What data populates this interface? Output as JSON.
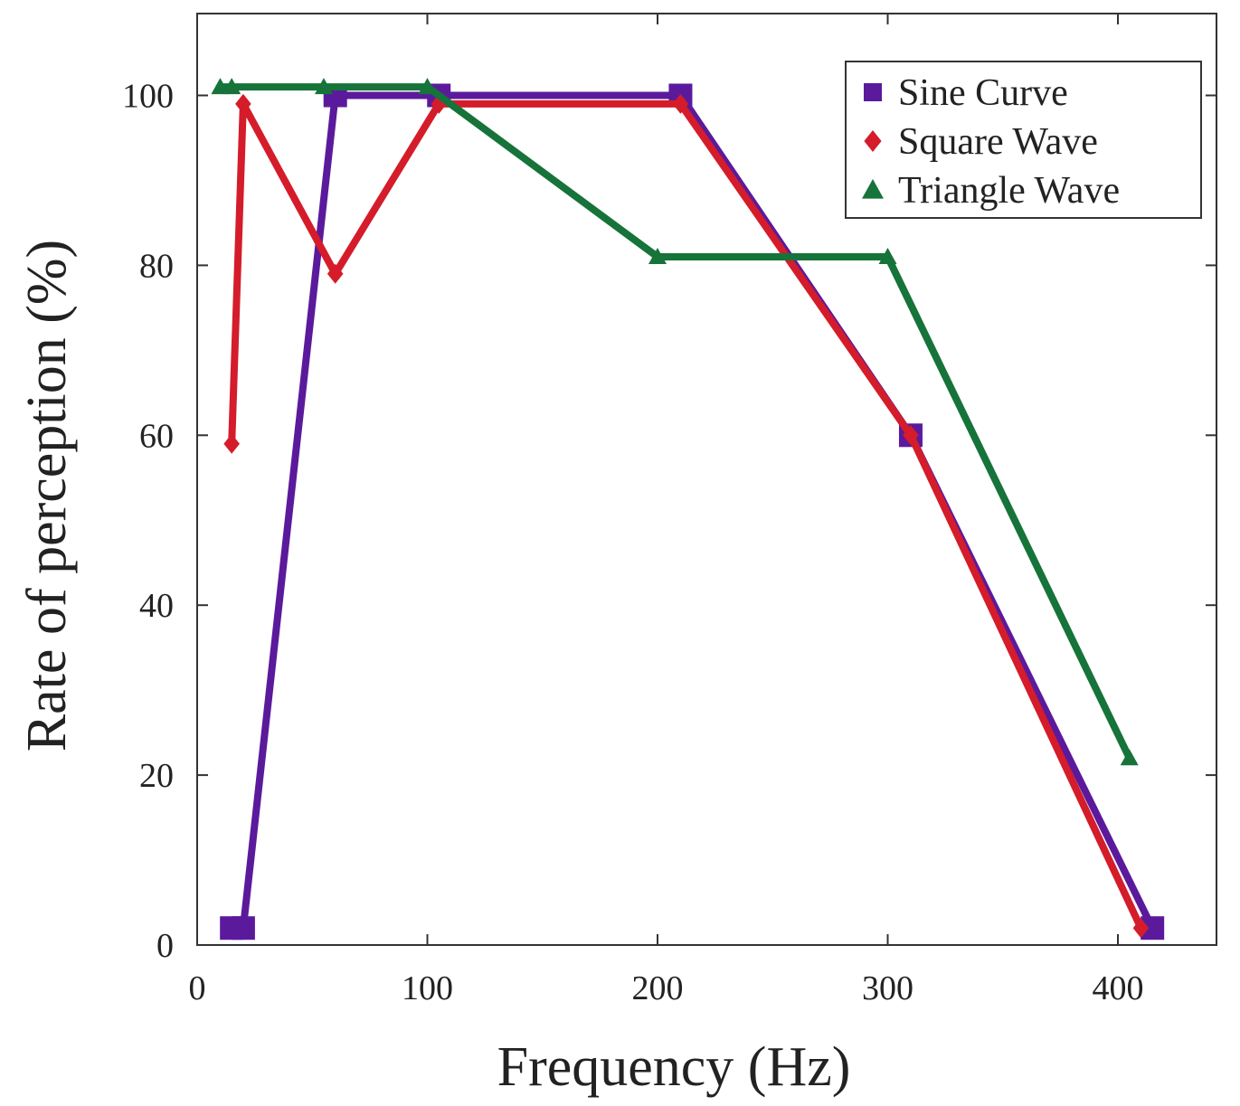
{
  "chart_data": {
    "type": "line",
    "title": "",
    "xlabel": "Frequency (Hz)",
    "ylabel": "Rate of perception (%)",
    "xlim": [
      0,
      420
    ],
    "ylim": [
      0,
      108
    ],
    "xticks": [
      0,
      100,
      200,
      300,
      400
    ],
    "yticks": [
      0,
      20,
      40,
      60,
      80,
      100
    ],
    "grid": false,
    "legend_position": "top-right",
    "series": [
      {
        "name": "Sine Curve",
        "marker": "square",
        "color": "#5b1a9c",
        "x": [
          15,
          20,
          60,
          105,
          210,
          310,
          415
        ],
        "y": [
          2,
          2,
          100,
          100,
          100,
          60,
          2
        ]
      },
      {
        "name": "Square Wave",
        "marker": "diamond",
        "color": "#d41c2b",
        "x": [
          15,
          20,
          60,
          105,
          210,
          310,
          410
        ],
        "y": [
          59,
          99,
          79,
          99,
          99,
          60,
          2
        ]
      },
      {
        "name": "Triangle Wave",
        "marker": "triangle",
        "color": "#16733a",
        "x": [
          10,
          15,
          55,
          100,
          200,
          300,
          405
        ],
        "y": [
          101,
          101,
          101,
          101,
          81,
          81,
          22
        ]
      }
    ]
  }
}
